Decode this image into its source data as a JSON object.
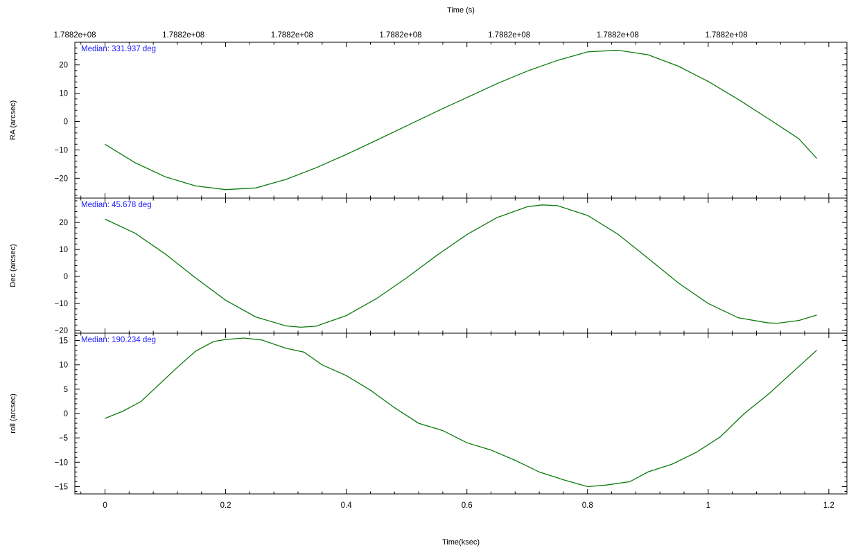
{
  "chart_data": {
    "type": "line",
    "top_axis": {
      "label": "Time (s)",
      "tick_labels": [
        "1.7882e+08",
        "1.7882e+08",
        "1.7882e+08",
        "1.7882e+08",
        "1.7882e+08",
        "1.7882e+08",
        "1.7882e+08"
      ],
      "tick_values_ksec": [
        -0.05,
        0.13,
        0.31,
        0.49,
        0.67,
        0.85,
        1.03
      ]
    },
    "x": {
      "label": "Time(ksec)",
      "lim": [
        -0.05,
        1.23
      ],
      "ticks": [
        0,
        0.2,
        0.4,
        0.6,
        0.8,
        1,
        1.2
      ],
      "tick_labels": [
        "0",
        "0.2",
        "0.4",
        "0.6",
        "0.8",
        "1",
        "1.2"
      ]
    },
    "panels": [
      {
        "name": "RA",
        "ylabel": "RA (arcsec)",
        "annotation": "Median: 331.937 deg",
        "ylim": [
          -27,
          28
        ],
        "yticks": [
          -20,
          -10,
          0,
          10,
          20
        ],
        "ytick_labels": [
          "−20",
          "−10",
          "0",
          "10",
          "20"
        ],
        "color": "#0a7a0a",
        "x": [
          0,
          0.05,
          0.1,
          0.15,
          0.2,
          0.25,
          0.3,
          0.35,
          0.4,
          0.45,
          0.5,
          0.55,
          0.6,
          0.65,
          0.7,
          0.75,
          0.8,
          0.85,
          0.9,
          0.95,
          1.0,
          1.05,
          1.1,
          1.15,
          1.18
        ],
        "y": [
          -8,
          -14.5,
          -19.5,
          -22.7,
          -24,
          -23.4,
          -20.4,
          -16.3,
          -11.6,
          -6.6,
          -1.5,
          3.6,
          8.5,
          13.4,
          17.8,
          21.6,
          24.6,
          25.2,
          23.6,
          19.6,
          14.2,
          7.8,
          1.0,
          -6.0,
          -13
        ]
      },
      {
        "name": "Dec",
        "ylabel": "Dec (arcsec)",
        "annotation": "Median: 45.678 deg",
        "ylim": [
          -21,
          29
        ],
        "yticks": [
          -20,
          -10,
          0,
          10,
          20
        ],
        "ytick_labels": [
          "−20",
          "−10",
          "0",
          "10",
          "20"
        ],
        "color": "#0a7a0a",
        "x": [
          0,
          0.05,
          0.1,
          0.15,
          0.2,
          0.25,
          0.3,
          0.325,
          0.35,
          0.4,
          0.45,
          0.5,
          0.55,
          0.6,
          0.65,
          0.7,
          0.725,
          0.75,
          0.8,
          0.85,
          0.9,
          0.95,
          1.0,
          1.05,
          1.1,
          1.115,
          1.15,
          1.18
        ],
        "y": [
          21.2,
          16,
          8.3,
          -0.5,
          -8.8,
          -15,
          -18.3,
          -18.8,
          -18.4,
          -14.5,
          -8.2,
          -0.5,
          7.8,
          15.5,
          21.8,
          25.8,
          26.5,
          26.2,
          22.6,
          15.7,
          6.8,
          -2.3,
          -10,
          -15.3,
          -17.2,
          -17.3,
          -16.3,
          -14.3
        ]
      },
      {
        "name": "roll",
        "ylabel": "roll (arcsec)",
        "annotation": "Median: 190.234 deg",
        "ylim": [
          -16.5,
          16.5
        ],
        "yticks": [
          -15,
          -10,
          -5,
          0,
          5,
          10,
          15
        ],
        "ytick_labels": [
          "−15",
          "−10",
          "−5",
          "0",
          "5",
          "10",
          "15"
        ],
        "color": "#0a7a0a",
        "x": [
          0,
          0.03,
          0.06,
          0.09,
          0.12,
          0.15,
          0.18,
          0.2,
          0.23,
          0.26,
          0.3,
          0.33,
          0.36,
          0.4,
          0.44,
          0.48,
          0.52,
          0.56,
          0.6,
          0.64,
          0.68,
          0.72,
          0.76,
          0.8,
          0.83,
          0.87,
          0.9,
          0.94,
          0.98,
          1.02,
          1.06,
          1.1,
          1.14,
          1.18
        ],
        "y": [
          -1,
          0.5,
          2.5,
          6,
          9.5,
          12.8,
          14.8,
          15.2,
          15.5,
          15.1,
          13.4,
          12.6,
          10,
          7.8,
          4.8,
          1.2,
          -2,
          -3.5,
          -6,
          -7.5,
          -9.6,
          -12,
          -13.6,
          -15,
          -14.7,
          -14,
          -12,
          -10.4,
          -8,
          -4.8,
          0,
          4,
          8.5,
          13
        ]
      }
    ]
  }
}
